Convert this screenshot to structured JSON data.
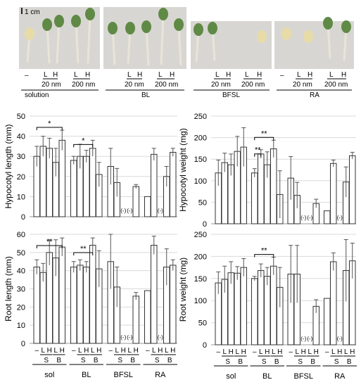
{
  "photo": {
    "scale_label": "1 cm",
    "groups": [
      {
        "name": "solution",
        "dash": "–",
        "low": "L",
        "high": "H",
        "conc1": "20 nm",
        "conc2": "200 nm"
      },
      {
        "name": "BL",
        "low": "L",
        "high": "H",
        "conc1": "20 nm",
        "conc2": "200 nm"
      },
      {
        "name": "BFSL",
        "low": "L",
        "high": "H",
        "conc1": "20 nm",
        "conc2": "200 nm"
      },
      {
        "name": "RA",
        "dash": "–",
        "low": "L",
        "high": "H",
        "conc1": "20 nm",
        "conc2": "200 nm"
      }
    ]
  },
  "colors": {
    "bar_fill": "#ffffff",
    "bar_stroke": "#333333",
    "grid": "#d9d9d9",
    "photo_bg": "#d8d6d2"
  },
  "chart_data": [
    {
      "type": "bar",
      "ylabel": "Hypocotyl length (mm)",
      "ylim": [
        0,
        50
      ],
      "yticks": [
        0,
        10,
        20,
        30,
        40,
        50
      ],
      "groups": [
        "sol",
        "BL",
        "BFSL",
        "RA"
      ],
      "values": [
        [
          30,
          35,
          34,
          27,
          38
        ],
        [
          28,
          30,
          30,
          34,
          21
        ],
        [
          25,
          17,
          null,
          null,
          15
        ],
        [
          10,
          31,
          null,
          20,
          32
        ]
      ],
      "errors": [
        [
          5,
          5,
          5,
          7,
          5
        ],
        [
          2,
          6,
          3,
          4,
          6
        ],
        [
          9,
          7,
          null,
          null,
          1
        ],
        [
          0,
          3,
          null,
          5,
          2
        ]
      ],
      "missing_label": "(-)",
      "significance": [
        {
          "group": 0,
          "from": 0,
          "to": 4,
          "label": "*"
        },
        {
          "group": 1,
          "from": 0,
          "to": 3,
          "label": "*"
        }
      ]
    },
    {
      "type": "bar",
      "ylabel": "Hypocotyl weight (mg)",
      "ylim": [
        0,
        250
      ],
      "yticks": [
        0,
        50,
        100,
        150,
        200,
        250
      ],
      "groups": [
        "sol",
        "BL",
        "BFSL",
        "RA"
      ],
      "values": [
        [
          118,
          142,
          137,
          168,
          178
        ],
        [
          118,
          162,
          137,
          174,
          68
        ],
        [
          106,
          66,
          null,
          null,
          47
        ],
        [
          30,
          140,
          null,
          97,
          158
        ]
      ],
      "errors": [
        [
          30,
          22,
          25,
          35,
          45
        ],
        [
          10,
          10,
          30,
          20,
          55
        ],
        [
          50,
          30,
          null,
          null,
          10
        ],
        [
          0,
          8,
          null,
          35,
          8
        ]
      ],
      "missing_label": "(-)",
      "significance": [
        {
          "group": 1,
          "from": 0,
          "to": 3,
          "label": "**"
        },
        {
          "group": 1,
          "from": 0,
          "to": 1,
          "label": "**"
        }
      ]
    },
    {
      "type": "bar",
      "ylabel": "Root length (mm)",
      "ylim": [
        0,
        60
      ],
      "yticks": [
        0,
        10,
        20,
        30,
        40,
        50,
        60
      ],
      "groups": [
        "sol",
        "BL",
        "BFSL",
        "RA"
      ],
      "values": [
        [
          42,
          39,
          50,
          47,
          53
        ],
        [
          42,
          43,
          42,
          54,
          41
        ],
        [
          45,
          31,
          null,
          null,
          26
        ],
        [
          29,
          54,
          null,
          42,
          43
        ]
      ],
      "errors": [
        [
          4,
          5,
          7,
          10,
          5
        ],
        [
          3,
          3,
          3,
          4,
          10
        ],
        [
          15,
          11,
          null,
          null,
          2
        ],
        [
          0,
          5,
          null,
          10,
          3
        ]
      ],
      "missing_label": "(-)",
      "xticks": [
        "–",
        "L",
        "H",
        "L",
        "H"
      ],
      "subgroup_labels": [
        "S",
        "B"
      ],
      "significance": [
        {
          "group": 0,
          "from": 0,
          "to": 4,
          "label": "**"
        },
        {
          "group": 1,
          "from": 0,
          "to": 3,
          "label": "**"
        }
      ]
    },
    {
      "type": "bar",
      "ylabel": "Root weight (mg)",
      "ylim": [
        0,
        250
      ],
      "yticks": [
        0,
        50,
        100,
        150,
        200,
        250
      ],
      "groups": [
        "sol",
        "BL",
        "BFSL",
        "RA"
      ],
      "values": [
        [
          140,
          148,
          163,
          162,
          175
        ],
        [
          150,
          168,
          155,
          178,
          130
        ],
        [
          160,
          160,
          null,
          null,
          87
        ],
        [
          105,
          188,
          null,
          168,
          190
        ]
      ],
      "errors": [
        [
          25,
          30,
          25,
          15,
          20
        ],
        [
          5,
          15,
          20,
          20,
          45
        ],
        [
          65,
          65,
          null,
          null,
          15
        ],
        [
          0,
          20,
          null,
          70,
          40
        ]
      ],
      "missing_label": "(-)",
      "xticks": [
        "–",
        "L",
        "H",
        "L",
        "H"
      ],
      "subgroup_labels": [
        "S",
        "B"
      ],
      "significance": [
        {
          "group": 1,
          "from": 0,
          "to": 3,
          "label": "**"
        }
      ]
    }
  ]
}
